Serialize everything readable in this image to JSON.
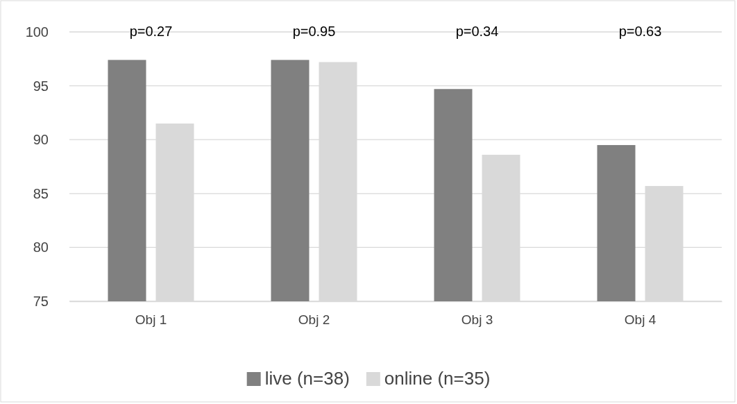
{
  "chart_data": {
    "type": "bar",
    "categories": [
      "Obj 1",
      "Obj 2",
      "Obj 3",
      "Obj 4"
    ],
    "series": [
      {
        "name": "live (n=38)",
        "color": "#808080",
        "values": [
          97.4,
          97.4,
          94.7,
          89.5
        ]
      },
      {
        "name": "online (n=35)",
        "color": "#d9d9d9",
        "values": [
          91.5,
          97.2,
          88.6,
          85.7
        ]
      }
    ],
    "ylim": [
      75,
      100
    ],
    "yticks": [
      75,
      80,
      85,
      90,
      95,
      100
    ],
    "grid": "y",
    "legend": "bottom",
    "annotations": [
      "p=0.27",
      "p=0.95",
      "p=0.34",
      "p=0.63"
    ]
  }
}
